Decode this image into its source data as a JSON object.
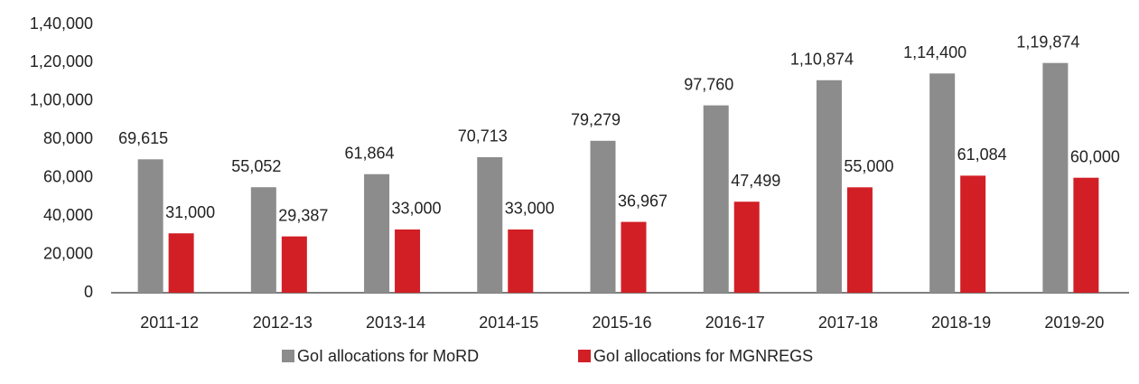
{
  "chart_data": {
    "type": "bar",
    "categories": [
      "2011-12",
      "2012-13",
      "2013-14",
      "2014-15",
      "2015-16",
      "2016-17",
      "2017-18",
      "2018-19",
      "2019-20"
    ],
    "series": [
      {
        "name": "GoI allocations for MoRD",
        "color": "#8c8c8c",
        "values": [
          69615,
          55052,
          61864,
          70713,
          79279,
          97760,
          110874,
          114400,
          119874
        ],
        "value_labels": [
          "69,615",
          "55,052",
          "61,864",
          "70,713",
          "79,279",
          "97,760",
          "1,10,874",
          "1,14,400",
          "1,19,874"
        ]
      },
      {
        "name": "GoI allocations for MGNREGS",
        "color": "#d21f26",
        "values": [
          31000,
          29387,
          33000,
          33000,
          36967,
          47499,
          55000,
          61084,
          60000
        ],
        "value_labels": [
          "31,000",
          "29,387",
          "33,000",
          "33,000",
          "36,967",
          "47,499",
          "55,000",
          "61,084",
          "60,000"
        ]
      }
    ],
    "ylim": [
      0,
      140000
    ],
    "yticks": [
      0,
      {
        "value": 20000,
        "label": "20,000"
      },
      {
        "value": 40000,
        "label": "40,000"
      },
      {
        "value": 60000,
        "label": "60,000"
      },
      {
        "value": 80000,
        "label": "80,000"
      },
      {
        "value": 100000,
        "label": "1,00,000"
      },
      {
        "value": 120000,
        "label": "1,20,000"
      },
      {
        "value": 140000,
        "label": "1,40,000"
      }
    ],
    "legend": "bottom"
  }
}
